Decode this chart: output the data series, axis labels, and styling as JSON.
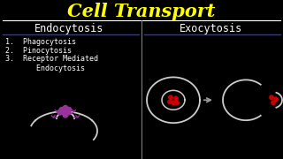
{
  "background_color": "#000000",
  "title": "Cell Transport",
  "title_color": "#ffff00",
  "title_fontsize": 15,
  "title_fontstyle": "italic",
  "title_fontfamily": "DejaVu Serif",
  "endocytosis_label": "Endocytosis",
  "exocytosis_label": "Exocytosis",
  "header_color": "#ffffff",
  "header_fontsize": 8.5,
  "list_items": [
    "1.  Phagocytosis",
    "2.  Pinocytosis",
    "3.  Receptor Mediated\n       Endocytosis"
  ],
  "list_color": "#ffffff",
  "list_fontsize": 6.0,
  "divider_color": "#ffffff",
  "blue_line_color": "#3333cc",
  "cell_outline_color": "#cccccc",
  "dot_color_purple": "#993399",
  "dot_color_red": "#cc0000",
  "arrow_color": "#999999",
  "mid_divider_color": "#888888"
}
